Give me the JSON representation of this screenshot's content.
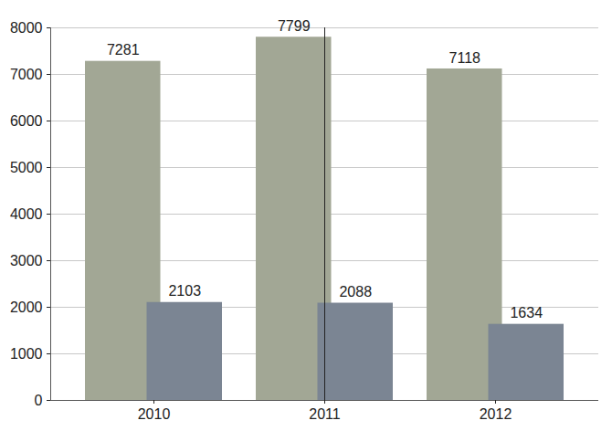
{
  "chart_data": {
    "type": "bar",
    "categories": [
      "2010",
      "2011",
      "2012"
    ],
    "series": [
      {
        "color": "#a2a795",
        "values": [
          7281,
          7799,
          7118
        ]
      },
      {
        "color": "#7b8593",
        "values": [
          2103,
          2088,
          1634
        ]
      }
    ],
    "ylim": [
      0,
      8000
    ],
    "yticks": [
      0,
      1000,
      2000,
      3000,
      4000,
      5000,
      6000,
      7000,
      8000
    ],
    "grid": true,
    "data_labels": true
  }
}
